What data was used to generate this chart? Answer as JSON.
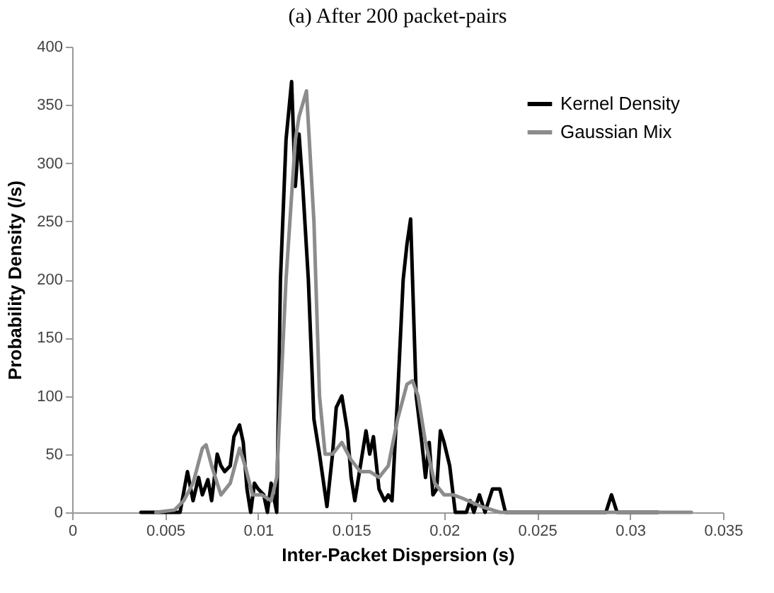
{
  "chart_data": {
    "type": "line",
    "title": "(a)    After 200 packet-pairs",
    "xlabel": "Inter-Packet Dispersion (s)",
    "ylabel": "Probability Density (/s)",
    "xlim": [
      0,
      0.035
    ],
    "xticks": [
      0,
      0.005,
      0.01,
      0.015,
      0.02,
      0.025,
      0.03,
      0.035
    ],
    "ylim": [
      0,
      400
    ],
    "yticks": [
      0,
      50,
      100,
      150,
      200,
      250,
      300,
      350,
      400
    ],
    "grid": false,
    "legend": "top right",
    "series": [
      {
        "name": "Kernel Density",
        "color": "#000000",
        "x": [
          0.0037,
          0.0058,
          0.0062,
          0.0065,
          0.0068,
          0.007,
          0.0073,
          0.0075,
          0.0078,
          0.008,
          0.0082,
          0.0085,
          0.0087,
          0.009,
          0.0092,
          0.0094,
          0.0096,
          0.0098,
          0.01,
          0.0103,
          0.0105,
          0.0107,
          0.011,
          0.0112,
          0.0115,
          0.0118,
          0.012,
          0.0122,
          0.0124,
          0.0127,
          0.013,
          0.0133,
          0.0137,
          0.014,
          0.0142,
          0.0145,
          0.0148,
          0.015,
          0.0152,
          0.0155,
          0.0158,
          0.016,
          0.0162,
          0.0165,
          0.0168,
          0.017,
          0.0172,
          0.0175,
          0.0178,
          0.018,
          0.0182,
          0.0185,
          0.0188,
          0.019,
          0.0192,
          0.0194,
          0.0196,
          0.0198,
          0.02,
          0.0203,
          0.0206,
          0.0212,
          0.0214,
          0.0216,
          0.0219,
          0.0222,
          0.0226,
          0.023,
          0.0233,
          0.0287,
          0.029,
          0.0293,
          0.0315
        ],
        "values": [
          0,
          0,
          35,
          10,
          30,
          15,
          28,
          10,
          50,
          40,
          35,
          40,
          65,
          75,
          60,
          20,
          0,
          25,
          20,
          15,
          0,
          25,
          0,
          200,
          320,
          370,
          280,
          325,
          280,
          200,
          80,
          50,
          5,
          50,
          90,
          100,
          70,
          30,
          10,
          40,
          70,
          50,
          65,
          20,
          10,
          15,
          10,
          100,
          200,
          230,
          252,
          100,
          60,
          30,
          60,
          15,
          20,
          70,
          60,
          40,
          0,
          0,
          10,
          0,
          15,
          0,
          20,
          20,
          0,
          0,
          15,
          0,
          0
        ]
      },
      {
        "name": "Gaussian Mix",
        "color": "#8c8c8c",
        "x": [
          0.0045,
          0.0055,
          0.006,
          0.0065,
          0.007,
          0.0072,
          0.0075,
          0.008,
          0.0085,
          0.009,
          0.0093,
          0.0097,
          0.0102,
          0.0107,
          0.011,
          0.0115,
          0.012,
          0.0122,
          0.0126,
          0.013,
          0.0133,
          0.0136,
          0.014,
          0.0145,
          0.015,
          0.0155,
          0.016,
          0.0165,
          0.017,
          0.0175,
          0.018,
          0.0183,
          0.0186,
          0.019,
          0.0195,
          0.02,
          0.0205,
          0.021,
          0.022,
          0.023,
          0.0333
        ],
        "values": [
          0,
          2,
          10,
          25,
          55,
          58,
          40,
          15,
          25,
          55,
          40,
          15,
          15,
          10,
          30,
          200,
          320,
          340,
          362,
          250,
          100,
          50,
          50,
          60,
          45,
          35,
          35,
          30,
          40,
          80,
          110,
          113,
          100,
          60,
          25,
          15,
          15,
          12,
          5,
          0,
          0
        ]
      }
    ]
  }
}
